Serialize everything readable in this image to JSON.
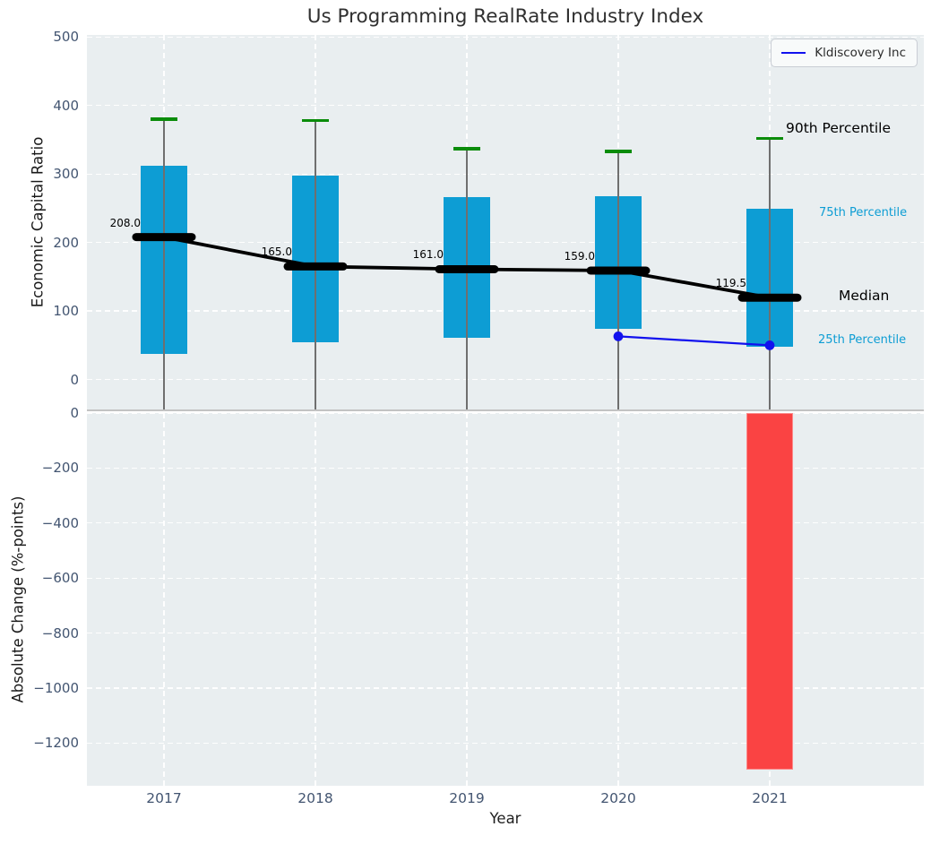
{
  "title": "Us Programming RealRate Industry Index",
  "legend": {
    "label": "Kldiscovery Inc",
    "line_color": "#1111ee"
  },
  "annotations": {
    "p90": "90th Percentile",
    "p75": "75th Percentile",
    "median": "Median",
    "p25": "25th Percentile"
  },
  "colors": {
    "box": "#0d9dd4",
    "cap": "#0a8c0a",
    "median_line": "#000000",
    "trend_line": "#000000",
    "company_line": "#1111ee",
    "bar": "#fa4343",
    "bar_edge": "#fb8a8a",
    "percentile_text": "#0d9dd4",
    "plot_bg": "#e9eef0",
    "grid": "#ffffff",
    "tick_text": "#435571",
    "whisker": "#6f6f6f"
  },
  "chart_data": [
    {
      "type": "box",
      "title": "Us Programming RealRate Industry Index",
      "ylabel": "Economic Capital Ratio",
      "categories": [
        "2017",
        "2018",
        "2019",
        "2020",
        "2021"
      ],
      "p90": [
        380,
        378,
        337,
        333,
        352
      ],
      "p75": [
        312,
        298,
        266,
        267,
        249
      ],
      "median": [
        208.0,
        165.0,
        161.0,
        159.0,
        119.5
      ],
      "p25": [
        38,
        54,
        61,
        74,
        48
      ],
      "median_labels": [
        "208.0",
        "165.0",
        "161.0",
        "159.0",
        "119.5"
      ],
      "series": [
        {
          "name": "Kldiscovery Inc",
          "x": [
            "2020",
            "2021"
          ],
          "x_index": [
            3,
            4
          ],
          "values": [
            63,
            50
          ]
        }
      ],
      "ylim": [
        -45,
        503
      ],
      "ytick_values": [
        0,
        100,
        200,
        300,
        400,
        500
      ],
      "ytick_labels": [
        "0",
        "100",
        "200",
        "300",
        "400",
        "500"
      ],
      "grid": true,
      "legend_position": "upper right"
    },
    {
      "type": "bar",
      "ylabel": "Absolute Change (%-points)",
      "xlabel": "Year",
      "categories": [
        "2017",
        "2018",
        "2019",
        "2020",
        "2021"
      ],
      "values": [
        null,
        null,
        null,
        null,
        -1295
      ],
      "ylim": [
        -1355,
        0
      ],
      "ytick_values": [
        0,
        -200,
        -400,
        -600,
        -800,
        -1000,
        -1200
      ],
      "ytick_labels": [
        "0",
        "−200",
        "−400",
        "−600",
        "−800",
        "−1000",
        "−1200"
      ],
      "grid": true
    }
  ]
}
